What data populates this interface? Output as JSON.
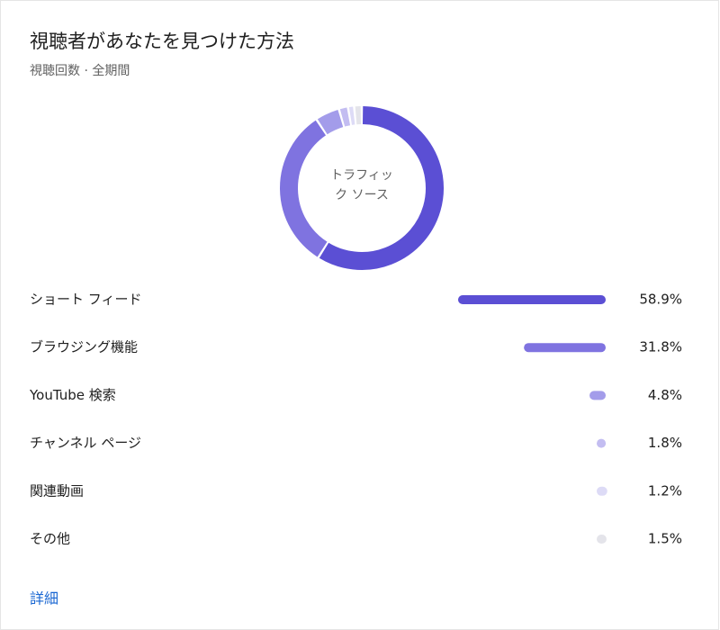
{
  "chart_data": {
    "type": "donut",
    "title": "視聴者があなたを見つけた方法",
    "subtitle": "視聴回数 · 全期間",
    "center_label": "トラフィック ソース",
    "categories": [
      "ショート フィード",
      "ブラウジング機能",
      "YouTube 検索",
      "チャンネル ページ",
      "関連動画",
      "その他"
    ],
    "values": [
      58.9,
      31.8,
      4.8,
      1.8,
      1.2,
      1.5
    ],
    "value_labels": [
      "58.9%",
      "31.8%",
      "4.8%",
      "1.8%",
      "1.2%",
      "1.5%"
    ],
    "colors": [
      "#5b4fd4",
      "#7f73e0",
      "#a39cea",
      "#c3bdf1",
      "#dddbf6",
      "#e4e4ea"
    ],
    "link": "詳細"
  }
}
